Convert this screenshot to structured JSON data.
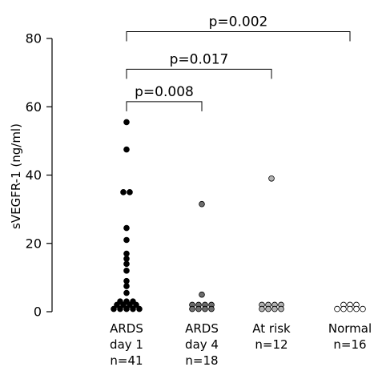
{
  "chart_data": {
    "type": "scatter",
    "ylabel": "sVEGFR-1 (ng/ml)",
    "ylim": [
      0,
      80
    ],
    "yticks": [
      0,
      20,
      40,
      60,
      80
    ],
    "grid": false,
    "groups": [
      {
        "label_lines": [
          "ARDS",
          "day 1",
          "n=41"
        ],
        "fill": "#000000",
        "points": [
          {
            "y": 55.5,
            "off": 0
          },
          {
            "y": 47.5,
            "off": 0
          },
          {
            "y": 35.0,
            "off": -0.5
          },
          {
            "y": 35.0,
            "off": 0.5
          },
          {
            "y": 24.5,
            "off": 0
          },
          {
            "y": 21.0,
            "off": 0
          },
          {
            "y": 17.0,
            "off": 0
          },
          {
            "y": 15.5,
            "off": 0
          },
          {
            "y": 14.0,
            "off": 0
          },
          {
            "y": 12.0,
            "off": 0
          },
          {
            "y": 9.0,
            "off": 0
          },
          {
            "y": 7.5,
            "off": 0
          },
          {
            "y": 5.5,
            "off": 0
          },
          {
            "y": 3.0,
            "off": -1
          },
          {
            "y": 3.0,
            "off": 0
          },
          {
            "y": 3.0,
            "off": 1
          },
          {
            "y": 2.0,
            "off": -1.5
          },
          {
            "y": 2.0,
            "off": -0.5
          },
          {
            "y": 2.0,
            "off": 0.5
          },
          {
            "y": 2.0,
            "off": 1.5
          },
          {
            "y": 0.8,
            "off": -2
          },
          {
            "y": 0.8,
            "off": -1
          },
          {
            "y": 0.8,
            "off": 0
          },
          {
            "y": 0.8,
            "off": 1
          },
          {
            "y": 0.8,
            "off": 2
          }
        ]
      },
      {
        "label_lines": [
          "ARDS",
          "day 4",
          "n=18"
        ],
        "fill": "#6e6e6e",
        "points": [
          {
            "y": 31.5,
            "off": 0
          },
          {
            "y": 5.0,
            "off": 0
          },
          {
            "y": 2.0,
            "off": -1.5
          },
          {
            "y": 2.0,
            "off": -0.5
          },
          {
            "y": 2.0,
            "off": 0.5
          },
          {
            "y": 2.0,
            "off": 1.5
          },
          {
            "y": 0.8,
            "off": -1.5
          },
          {
            "y": 0.8,
            "off": -0.5
          },
          {
            "y": 0.8,
            "off": 0.5
          },
          {
            "y": 0.8,
            "off": 1.5
          }
        ]
      },
      {
        "label_lines": [
          "At risk",
          "n=12"
        ],
        "fill": "#b3b3b3",
        "points": [
          {
            "y": 39.0,
            "off": 0
          },
          {
            "y": 2.0,
            "off": -1.5
          },
          {
            "y": 2.0,
            "off": -0.5
          },
          {
            "y": 2.0,
            "off": 0.5
          },
          {
            "y": 2.0,
            "off": 1.5
          },
          {
            "y": 0.8,
            "off": -1.5
          },
          {
            "y": 0.8,
            "off": -0.5
          },
          {
            "y": 0.8,
            "off": 0.5
          },
          {
            "y": 0.8,
            "off": 1.5
          }
        ]
      },
      {
        "label_lines": [
          "Normal",
          "n=16"
        ],
        "fill": "#ffffff",
        "points": [
          {
            "y": 2.0,
            "off": -1
          },
          {
            "y": 2.0,
            "off": 0
          },
          {
            "y": 2.0,
            "off": 1
          },
          {
            "y": 0.8,
            "off": -2
          },
          {
            "y": 0.8,
            "off": -1
          },
          {
            "y": 0.8,
            "off": 0
          },
          {
            "y": 0.8,
            "off": 1
          },
          {
            "y": 0.8,
            "off": 2
          }
        ]
      }
    ],
    "comparisons": [
      {
        "label": "p=0.008",
        "from": 0,
        "to": 1,
        "y": 61.5
      },
      {
        "label": "p=0.017",
        "from": 0,
        "to": 2,
        "y": 71.0
      },
      {
        "label": "p=0.002",
        "from": 0,
        "to": 3,
        "y": 82.0
      }
    ]
  }
}
